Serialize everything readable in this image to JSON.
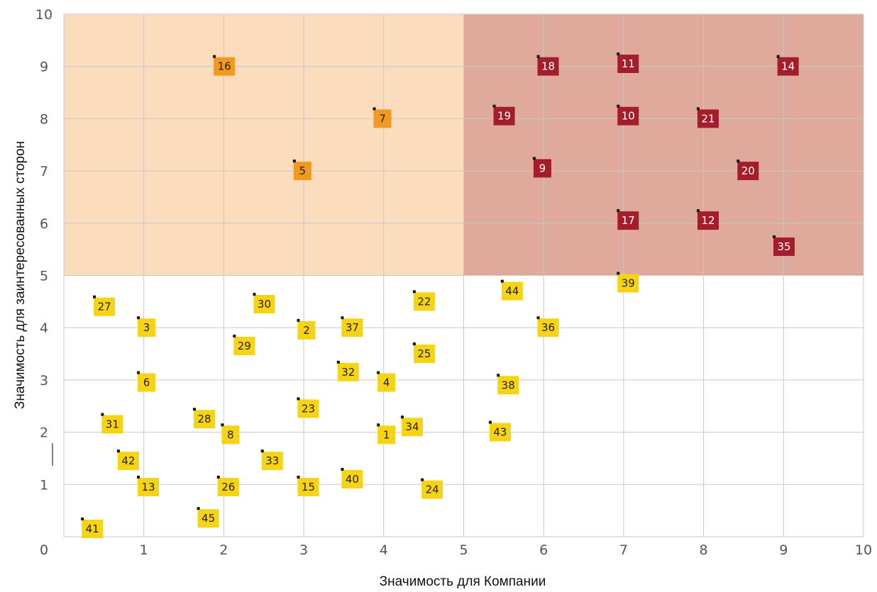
{
  "chart_data": {
    "type": "scatter",
    "title": "",
    "xlabel": "Значимость для Компании",
    "ylabel": "Значимость для заинтересованных сторон",
    "xlim": [
      0,
      10
    ],
    "ylim": [
      0,
      10
    ],
    "xticks": [
      "0",
      "1",
      "2",
      "3",
      "4",
      "5",
      "6",
      "7",
      "8",
      "9",
      "10"
    ],
    "yticks": [
      "0",
      "1",
      "2",
      "3",
      "4",
      "5",
      "6",
      "7",
      "8",
      "9",
      "10"
    ],
    "grid": true,
    "legend": "none",
    "zones": [
      {
        "x": [
          0,
          5
        ],
        "y": [
          5,
          10
        ],
        "color": "#fbdcbd"
      },
      {
        "x": [
          5,
          10
        ],
        "y": [
          5,
          10
        ],
        "color": "#dfaa9b"
      }
    ],
    "category_colors": {
      "low": {
        "fill": "#f7d315",
        "text": "#222222"
      },
      "medium": {
        "fill": "#f29a1f",
        "text": "#222222"
      },
      "high": {
        "fill": "#a31d2c",
        "text": "#ffffff"
      }
    },
    "points": [
      {
        "label": "16",
        "x": 1.9,
        "y": 9.0,
        "category": "medium"
      },
      {
        "label": "7",
        "x": 3.9,
        "y": 8.0,
        "category": "medium"
      },
      {
        "label": "5",
        "x": 2.9,
        "y": 7.0,
        "category": "medium"
      },
      {
        "label": "18",
        "x": 5.95,
        "y": 9.0,
        "category": "high"
      },
      {
        "label": "11",
        "x": 6.95,
        "y": 9.05,
        "category": "high"
      },
      {
        "label": "14",
        "x": 8.95,
        "y": 9.0,
        "category": "high"
      },
      {
        "label": "19",
        "x": 5.4,
        "y": 8.05,
        "category": "high"
      },
      {
        "label": "10",
        "x": 6.95,
        "y": 8.05,
        "category": "high"
      },
      {
        "label": "21",
        "x": 7.95,
        "y": 8.0,
        "category": "high"
      },
      {
        "label": "9",
        "x": 5.9,
        "y": 7.05,
        "category": "high"
      },
      {
        "label": "20",
        "x": 8.45,
        "y": 7.0,
        "category": "high"
      },
      {
        "label": "17",
        "x": 6.95,
        "y": 6.05,
        "category": "high"
      },
      {
        "label": "12",
        "x": 7.95,
        "y": 6.05,
        "category": "high"
      },
      {
        "label": "35",
        "x": 8.9,
        "y": 5.55,
        "category": "high"
      },
      {
        "label": "39",
        "x": 6.95,
        "y": 4.85,
        "category": "low"
      },
      {
        "label": "44",
        "x": 5.5,
        "y": 4.7,
        "category": "low"
      },
      {
        "label": "27",
        "x": 0.4,
        "y": 4.4,
        "category": "low"
      },
      {
        "label": "30",
        "x": 2.4,
        "y": 4.45,
        "category": "low"
      },
      {
        "label": "22",
        "x": 4.4,
        "y": 4.5,
        "category": "low"
      },
      {
        "label": "3",
        "x": 0.95,
        "y": 4.0,
        "category": "low"
      },
      {
        "label": "2",
        "x": 2.95,
        "y": 3.95,
        "category": "low"
      },
      {
        "label": "37",
        "x": 3.5,
        "y": 4.0,
        "category": "low"
      },
      {
        "label": "36",
        "x": 5.95,
        "y": 4.0,
        "category": "low"
      },
      {
        "label": "29",
        "x": 2.15,
        "y": 3.65,
        "category": "low"
      },
      {
        "label": "25",
        "x": 4.4,
        "y": 3.5,
        "category": "low"
      },
      {
        "label": "32",
        "x": 3.45,
        "y": 3.15,
        "category": "low"
      },
      {
        "label": "6",
        "x": 0.95,
        "y": 2.95,
        "category": "low"
      },
      {
        "label": "4",
        "x": 3.95,
        "y": 2.95,
        "category": "low"
      },
      {
        "label": "38",
        "x": 5.45,
        "y": 2.9,
        "category": "low"
      },
      {
        "label": "23",
        "x": 2.95,
        "y": 2.45,
        "category": "low"
      },
      {
        "label": "31",
        "x": 0.5,
        "y": 2.15,
        "category": "low"
      },
      {
        "label": "28",
        "x": 1.65,
        "y": 2.25,
        "category": "low"
      },
      {
        "label": "8",
        "x": 2.0,
        "y": 1.95,
        "category": "low"
      },
      {
        "label": "1",
        "x": 3.95,
        "y": 1.95,
        "category": "low"
      },
      {
        "label": "34",
        "x": 4.25,
        "y": 2.1,
        "category": "low"
      },
      {
        "label": "43",
        "x": 5.35,
        "y": 2.0,
        "category": "low"
      },
      {
        "label": "42",
        "x": 0.7,
        "y": 1.45,
        "category": "low"
      },
      {
        "label": "33",
        "x": 2.5,
        "y": 1.45,
        "category": "low"
      },
      {
        "label": "13",
        "x": 0.95,
        "y": 0.95,
        "category": "low"
      },
      {
        "label": "26",
        "x": 1.95,
        "y": 0.95,
        "category": "low"
      },
      {
        "label": "15",
        "x": 2.95,
        "y": 0.95,
        "category": "low"
      },
      {
        "label": "40",
        "x": 3.5,
        "y": 1.1,
        "category": "low"
      },
      {
        "label": "24",
        "x": 4.5,
        "y": 0.9,
        "category": "low"
      },
      {
        "label": "41",
        "x": 0.25,
        "y": 0.15,
        "category": "low"
      },
      {
        "label": "45",
        "x": 1.7,
        "y": 0.35,
        "category": "low"
      }
    ]
  }
}
